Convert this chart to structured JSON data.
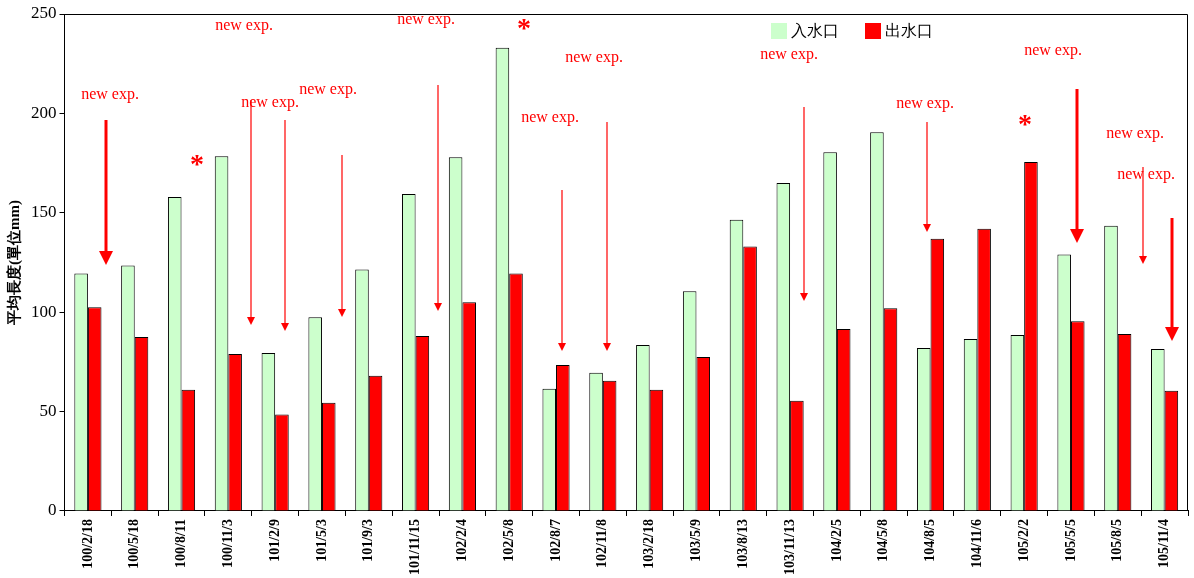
{
  "chart_data": {
    "type": "bar",
    "ylabel": "平均長度(單位mm)",
    "categories": [
      "100/2/18",
      "100/5/18",
      "100/8/11",
      "100/11/3",
      "101/2/9",
      "101/5/3",
      "101/9/3",
      "101/11/15",
      "102/2/4",
      "102/5/8",
      "102/8/7",
      "102/11/8",
      "103/2/18",
      "103/5/9",
      "103/8/13",
      "103/11/13",
      "104/2/5",
      "104/5/8",
      "104/8/5",
      "104/11/6",
      "105/2/2",
      "105/5/5",
      "105/8/5",
      "105/11/4"
    ],
    "series": [
      {
        "name": "入水口",
        "color": "#ccffcc",
        "values": [
          119.5,
          123.5,
          158,
          178.5,
          79.5,
          97.5,
          121.5,
          159.5,
          178,
          233,
          61.5,
          69.5,
          83.5,
          110.5,
          146.5,
          165,
          180.5,
          190.5,
          82,
          86.5,
          88.5,
          129,
          143.5,
          81.5
        ]
      },
      {
        "name": "出水口",
        "color": "#ff0000",
        "values": [
          102.5,
          87.5,
          61,
          79,
          48.5,
          54.5,
          68,
          88,
          105,
          119.5,
          73.5,
          65.5,
          61,
          77.5,
          133,
          55.5,
          91.5,
          102,
          137,
          142,
          175.5,
          95.5,
          89,
          60.5
        ]
      }
    ],
    "ylim": [
      0,
      250
    ],
    "yticks": [
      0,
      50,
      100,
      150,
      200,
      250
    ],
    "grid": false,
    "legend": "top right",
    "annotations": [
      "new exp.",
      "new exp.",
      "new exp.",
      "new exp.",
      "new exp.",
      "*",
      "*",
      "new exp.",
      "new exp.",
      "new exp.",
      "new exp.",
      "*",
      "new exp.",
      "new exp.",
      "new exp."
    ]
  }
}
